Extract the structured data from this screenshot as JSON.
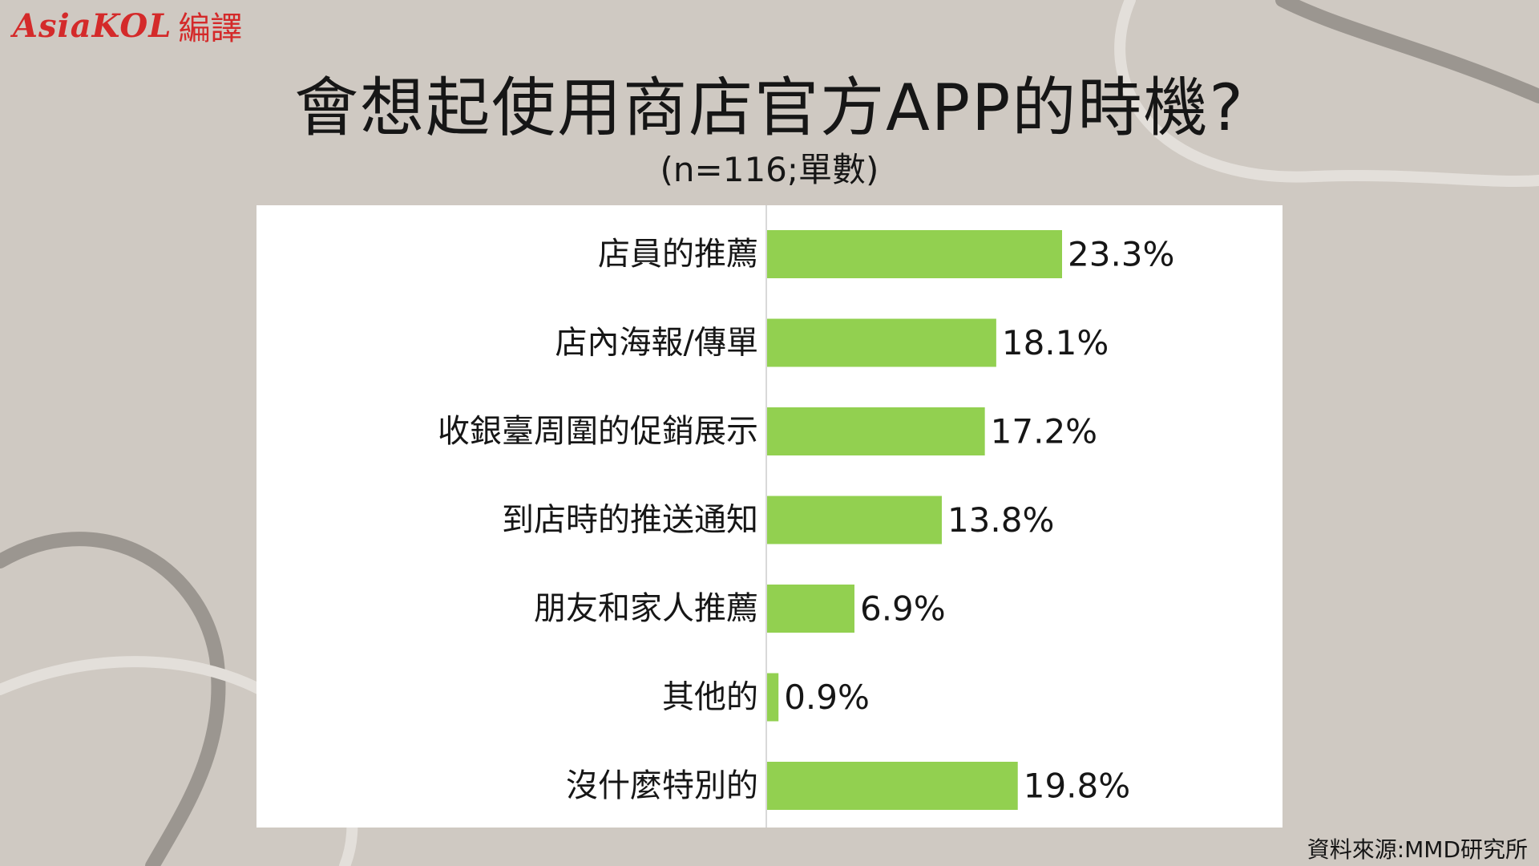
{
  "logo": {
    "brand": "AsiaKOL",
    "suffix": "編譯"
  },
  "title": "會想起使用商店官方APP的時機?",
  "subtitle": "(n=116;單數)",
  "source": "資料來源:MMD研究所",
  "colors": {
    "bar": "#92d050",
    "background": "#cfc9c2",
    "panel": "#ffffff",
    "axis": "#d9d9d9"
  },
  "chart_data": {
    "type": "bar",
    "orientation": "horizontal",
    "categories": [
      "店員的推薦",
      "店內海報/傳單",
      "收銀臺周圍的促銷展示",
      "到店時的推送通知",
      "朋友和家人推薦",
      "其他的",
      "沒什麼特別的"
    ],
    "values": [
      23.3,
      18.1,
      17.2,
      13.8,
      6.9,
      0.9,
      19.8
    ],
    "value_labels": [
      "23.3%",
      "18.1%",
      "17.2%",
      "13.8%",
      "6.9%",
      "0.9%",
      "19.8%"
    ],
    "xlim": [
      0,
      30
    ],
    "unit": "%",
    "grid": false,
    "legend": "none"
  }
}
